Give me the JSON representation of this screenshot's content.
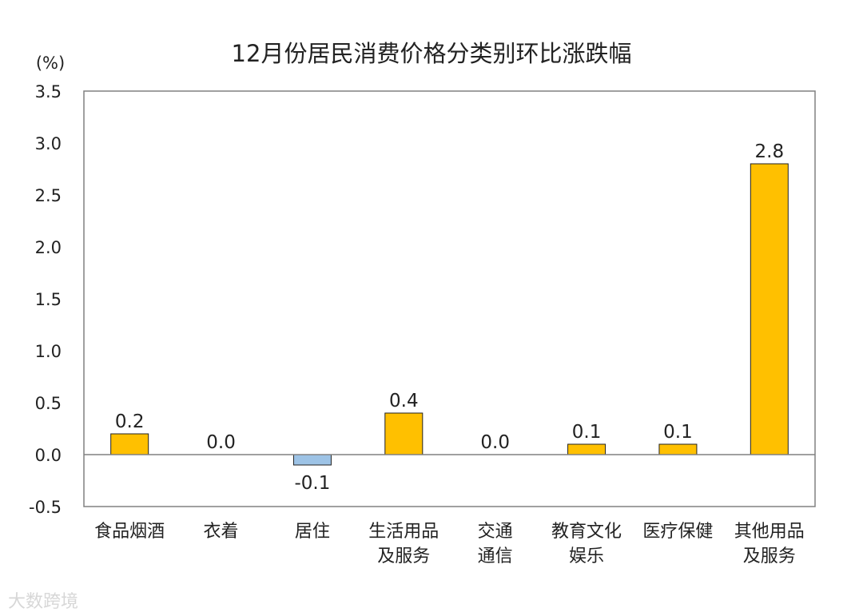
{
  "chart_data": {
    "type": "bar",
    "title": "12月份居民消费价格分类别环比涨跌幅",
    "ylabel": "(%)",
    "xlabel": "",
    "ylim": [
      -0.5,
      3.5
    ],
    "yticks": [
      "3.5",
      "3.0",
      "2.5",
      "2.0",
      "1.5",
      "1.0",
      "0.5",
      "0.0",
      "-0.5"
    ],
    "ytick_values": [
      3.5,
      3.0,
      2.5,
      2.0,
      1.5,
      1.0,
      0.5,
      0.0,
      -0.5
    ],
    "categories": [
      [
        "食品烟酒"
      ],
      [
        "衣着"
      ],
      [
        "居住"
      ],
      [
        "生活用品",
        "及服务"
      ],
      [
        "交通",
        "通信"
      ],
      [
        "教育文化",
        "娱乐"
      ],
      [
        "医疗保健"
      ],
      [
        "其他用品",
        "及服务"
      ]
    ],
    "values": [
      0.2,
      0.0,
      -0.1,
      0.4,
      0.0,
      0.1,
      0.1,
      2.8
    ],
    "value_labels": [
      "0.2",
      "0.0",
      "-0.1",
      "0.4",
      "0.0",
      "0.1",
      "0.1",
      "2.8"
    ],
    "grid": false,
    "colors": {
      "positive": "#FFC000",
      "negative": "#9DC3E6",
      "edge": "#222222",
      "axis": "#808080"
    }
  },
  "watermark": "大数跨境"
}
